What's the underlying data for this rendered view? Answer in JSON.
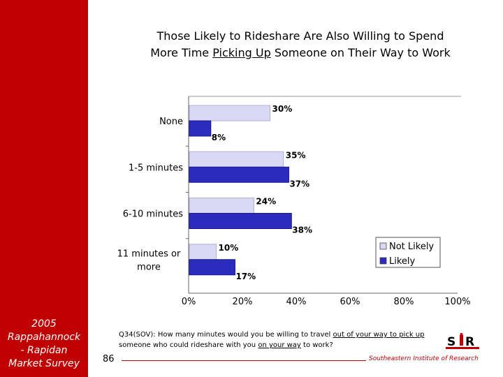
{
  "sidebar": {
    "lines": [
      "2005",
      "Rappahannock",
      "- Rapidan",
      "Market Survey"
    ]
  },
  "title": {
    "line1": "Those Likely to Rideshare Are Also Willing to Spend",
    "line2_before": "More Time ",
    "line2_underlined": "Picking Up",
    "line2_after": " Someone  on Their Way to Work"
  },
  "footnote": {
    "part1": "Q34(SOV): How many minutes would you be willing to travel ",
    "u1": "out of your way to pick up",
    "part2": " someone who could rideshare with you ",
    "u2": "on your way",
    "part3": " to work?"
  },
  "footer": {
    "page_number": "86",
    "organization": "Southeastern Institute of Research",
    "logo_text": "SIR"
  },
  "colors": {
    "sidebar": "#c00000",
    "not_likely": "#d9d9f5",
    "likely": "#2b2bbd"
  },
  "chart_data": {
    "type": "bar",
    "orientation": "horizontal",
    "categories": [
      "None",
      "1-5 minutes",
      "6-10 minutes",
      "11 minutes or more"
    ],
    "series": [
      {
        "name": "Not Likely",
        "values": [
          30,
          35,
          24,
          10
        ],
        "labels": [
          "30%",
          "35%",
          "24%",
          "10%"
        ]
      },
      {
        "name": "Likely",
        "values": [
          8,
          37,
          38,
          17
        ],
        "labels": [
          "8%",
          "37%",
          "38%",
          "17%"
        ]
      }
    ],
    "xlim": [
      0,
      100
    ],
    "xticks": [
      "0%",
      "20%",
      "40%",
      "60%",
      "80%",
      "100%"
    ],
    "legend": [
      "Not Likely",
      "Likely"
    ],
    "legend_position": "right"
  }
}
